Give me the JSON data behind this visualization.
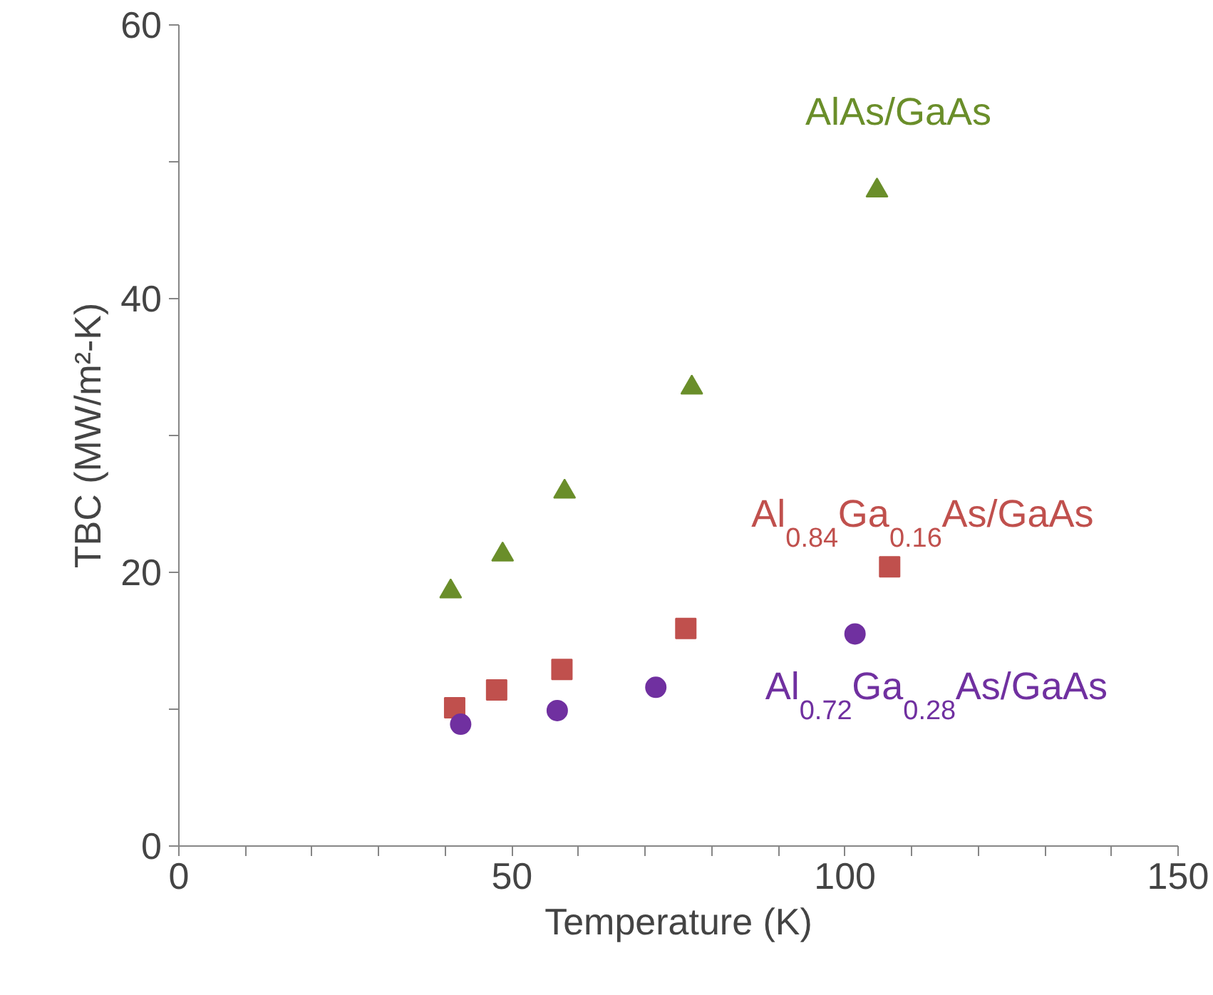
{
  "chart_data": {
    "type": "scatter",
    "xlabel": "Temperature (K)",
    "ylabel": "TBC (MW/m²-K)",
    "xlim": [
      0,
      150
    ],
    "ylim": [
      0,
      60
    ],
    "xticks": [
      0,
      {
        "value": 10,
        "label": null
      },
      {
        "value": 20,
        "label": null
      },
      {
        "value": 30,
        "label": null
      },
      {
        "value": 40,
        "label": null
      },
      50,
      {
        "value": 60,
        "label": null
      },
      {
        "value": 70,
        "label": null
      },
      {
        "value": 80,
        "label": null
      },
      {
        "value": 90,
        "label": null
      },
      100,
      {
        "value": 110,
        "label": null
      },
      {
        "value": 120,
        "label": null
      },
      {
        "value": 130,
        "label": null
      },
      {
        "value": 140,
        "label": null
      },
      150
    ],
    "yticks": [
      0,
      {
        "value": 10,
        "label": null
      },
      20,
      {
        "value": 30,
        "label": null
      },
      40,
      {
        "value": 50,
        "label": null
      },
      60
    ],
    "grid": false,
    "series": [
      {
        "name": "AlAs/GaAs",
        "color": "#6a8e2a",
        "marker": "triangle",
        "x": [
          40.8,
          48.6,
          57.9,
          77.0,
          104.8
        ],
        "values": [
          18.6,
          21.3,
          25.9,
          33.5,
          47.9
        ]
      },
      {
        "name": "Al$_{0.84}$Ga$_{0.16}$As/GaAs",
        "color": "#c0504d",
        "marker": "square",
        "x": [
          41.4,
          47.7,
          57.5,
          76.1,
          106.7
        ],
        "values": [
          10.1,
          11.4,
          12.9,
          15.9,
          20.4
        ]
      },
      {
        "name": "Al$_{0.72}$Ga$_{0.28}$As/GaAs",
        "color": "#7030a0",
        "marker": "circle",
        "x": [
          42.3,
          56.8,
          71.6,
          101.5
        ],
        "values": [
          8.9,
          9.9,
          11.6,
          15.5
        ]
      }
    ]
  }
}
